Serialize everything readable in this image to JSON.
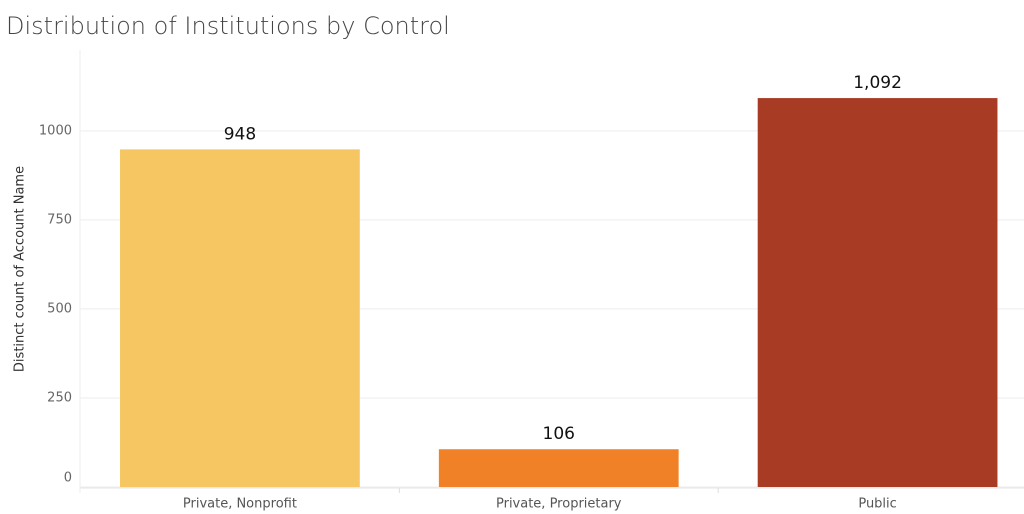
{
  "chart_data": {
    "type": "bar",
    "title": "Distribution of Institutions by Control",
    "y_label": "Distinct count of Account Name",
    "categories": [
      "Private, Nonprofit",
      "Private, Proprietary",
      "Public"
    ],
    "values": [
      948,
      106,
      1092
    ],
    "value_labels": [
      "948",
      "106",
      "1,092"
    ],
    "colors": [
      "#f5c662",
      "#f08127",
      "#a83b24"
    ],
    "ylim": [
      0,
      1227
    ],
    "yticks": [
      0,
      250,
      500,
      750,
      1000
    ],
    "grid": true
  }
}
